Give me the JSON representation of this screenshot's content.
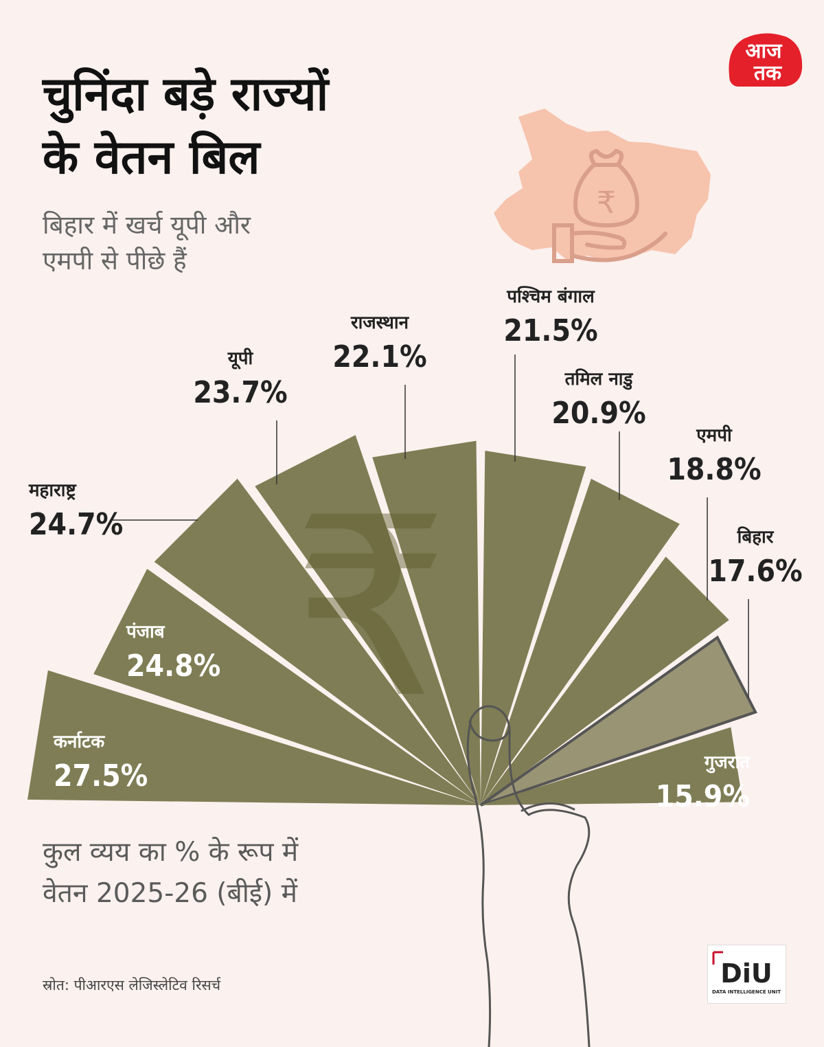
{
  "header": {
    "title_line1": "चुनिंदा बड़े राज्यों",
    "title_line2": "के वेतन बिल",
    "subtitle_line1": "बिहार में खर्च यूपी और",
    "subtitle_line2": "एमपी से पीछे हैं"
  },
  "brand": {
    "logo_line1": "आज",
    "logo_line2": "तक",
    "logo_color": "#e4202a",
    "diu_text": "DiU",
    "diu_sub": "DATA INTELLIGENCE UNIT"
  },
  "icon": {
    "map_name": "bihar-map-icon",
    "money_name": "money-bag-hand-icon",
    "currency_symbol": "₹"
  },
  "caption": {
    "line1": "कुल व्यय का % के रूप में",
    "line2": "वेतन 2025-26 (बीई) में"
  },
  "source": "स्रोत: पीआरएस लेजिस्लेटिव रिसर्च",
  "colors": {
    "background": "#fbf1ee",
    "blade": "#7f7d55",
    "highlight": "#999474",
    "map": "#f6c3ad"
  },
  "chart_data": {
    "type": "bar",
    "subtype": "fan",
    "categories": [
      "कर्नाटक",
      "पंजाब",
      "महाराष्ट्र",
      "यूपी",
      "राजस्थान",
      "पश्चिम बंगाल",
      "तमिल नाडु",
      "एमपी",
      "बिहार",
      "गुजरात"
    ],
    "values": [
      27.5,
      24.8,
      24.7,
      23.7,
      22.1,
      21.5,
      20.9,
      18.8,
      17.6,
      15.9
    ],
    "value_labels": [
      "27.5%",
      "24.8%",
      "24.7%",
      "23.7%",
      "22.1%",
      "21.5%",
      "20.9%",
      "18.8%",
      "17.6%",
      "15.9%"
    ],
    "highlight": "बिहार",
    "unit": "%"
  }
}
